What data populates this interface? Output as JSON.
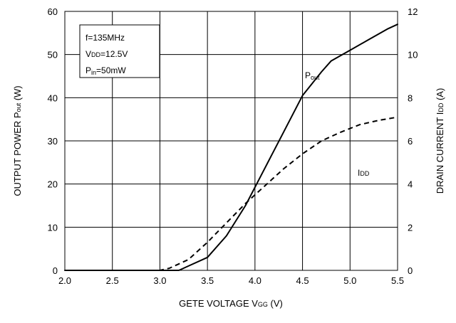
{
  "chart_data": {
    "type": "line",
    "xlabel": "GETE VOLTAGE VGG (V)",
    "xlabel_parts": {
      "main": "GETE VOLTAGE V",
      "sub": "GG",
      "unit": " (V)"
    },
    "ylabel_left": "OUTPUT POWER Pout (W)",
    "ylabel_left_parts": {
      "main": "OUTPUT POWER P",
      "sub": "out",
      "unit": " (W)"
    },
    "ylabel_right": "DRAIN CURRENT IDD (A)",
    "ylabel_right_parts": {
      "main": "DRAIN CURRENT I",
      "sub": "DD",
      "unit": " (A)"
    },
    "xlim": [
      2.0,
      5.5
    ],
    "ylim_left": [
      0,
      60
    ],
    "ylim_right": [
      0,
      12
    ],
    "x_ticks": [
      "2.0",
      "2.5",
      "3.0",
      "3.5",
      "4.0",
      "4.5",
      "5.0",
      "5.5"
    ],
    "y_left_ticks": [
      "0",
      "10",
      "20",
      "30",
      "40",
      "50",
      "60"
    ],
    "y_right_ticks": [
      "0",
      "2",
      "4",
      "6",
      "8",
      "10",
      "12"
    ],
    "grid": true,
    "conditions": {
      "line1": {
        "main": "f=135MHz"
      },
      "line2": {
        "pre": "V",
        "sub": "DD",
        "post": "=12.5V"
      },
      "line3": {
        "pre": "P",
        "sub": "in",
        "post": "=50mW"
      }
    },
    "series": [
      {
        "name": "Pout",
        "label_main": "P",
        "label_sub": "out",
        "axis": "left",
        "style": "solid",
        "color": "#000000",
        "x": [
          2.0,
          3.0,
          3.2,
          3.3,
          3.5,
          3.7,
          3.9,
          4.1,
          4.3,
          4.5,
          4.7,
          4.8,
          5.0,
          5.2,
          5.4,
          5.5
        ],
        "y": [
          0,
          0,
          0,
          1,
          3,
          8,
          15,
          23.5,
          32,
          40.5,
          46,
          48.5,
          51,
          53.5,
          56,
          57
        ]
      },
      {
        "name": "IDD",
        "label_main": "I",
        "label_sub": "DD",
        "axis": "right",
        "style": "dashed",
        "color": "#000000",
        "x": [
          2.0,
          3.0,
          3.1,
          3.3,
          3.5,
          3.7,
          3.9,
          4.1,
          4.3,
          4.5,
          4.7,
          4.9,
          5.1,
          5.3,
          5.5
        ],
        "y": [
          0,
          0,
          0.1,
          0.5,
          1.3,
          2.2,
          3.1,
          3.9,
          4.7,
          5.4,
          6.0,
          6.4,
          6.75,
          6.95,
          7.1
        ]
      }
    ]
  }
}
